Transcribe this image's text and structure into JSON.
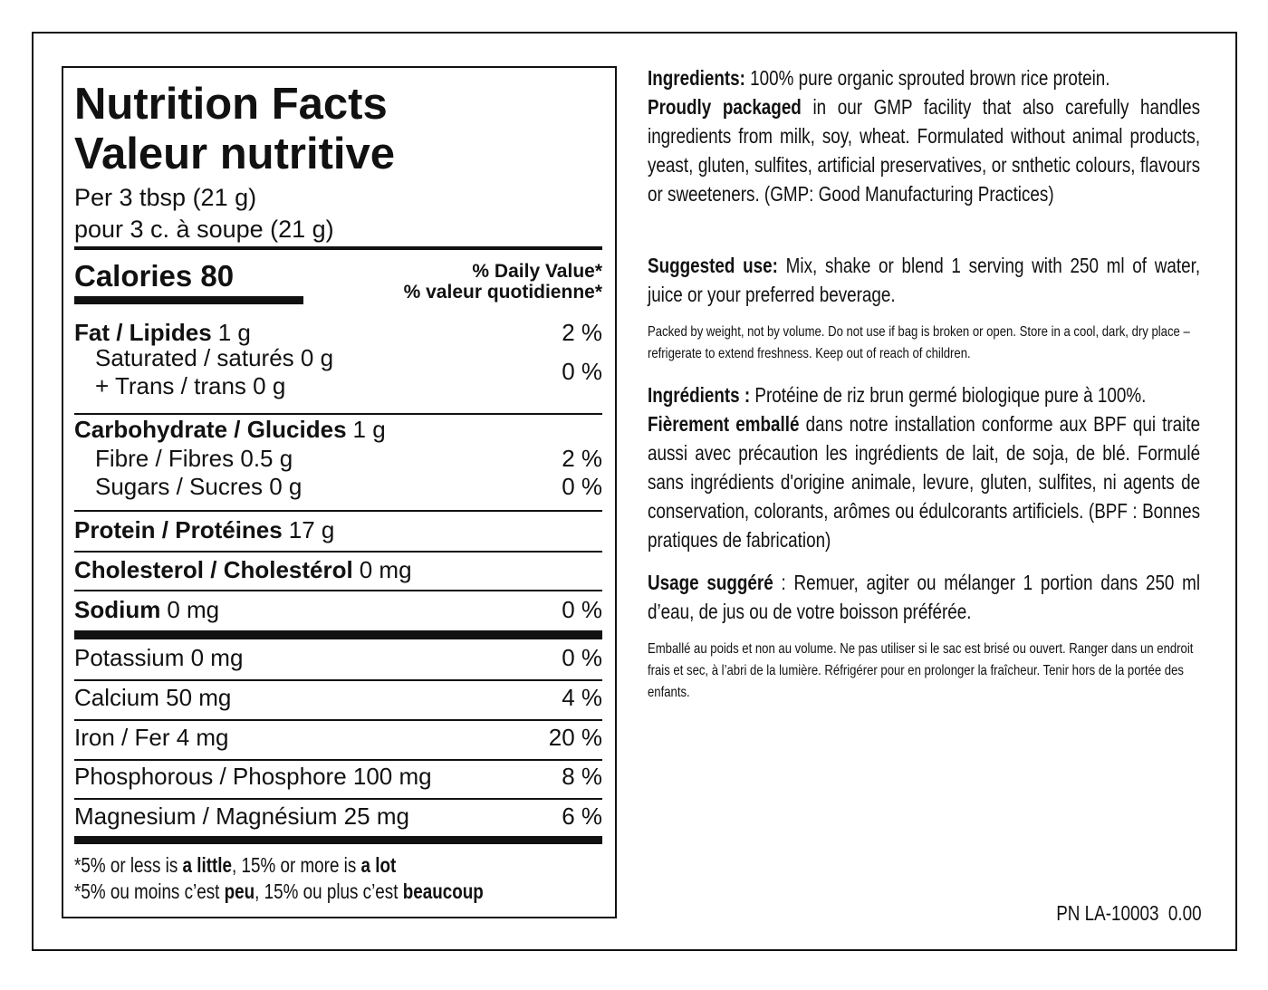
{
  "nutrition": {
    "title_en": "Nutrition Facts",
    "title_fr": "Valeur nutritive",
    "serving_en": "Per 3 tbsp (21 g)",
    "serving_fr": "pour 3 c. à soupe (21 g)",
    "calories": "Calories 80",
    "dv_en": "% Daily Value*",
    "dv_fr": "% valeur quotidienne*",
    "fat": {
      "name": "Fat / Lipides",
      "amount": "1 g",
      "dv": "2 %"
    },
    "saturated": "Saturated / saturés 0 g",
    "trans": "+ Trans / trans 0 g",
    "sat_trans_dv": "0 %",
    "carbohydrate": {
      "name": "Carbohydrate / Glucides",
      "amount": "1 g"
    },
    "fibre": {
      "text": "Fibre / Fibres 0.5 g",
      "dv": "2 %"
    },
    "sugars": {
      "text": "Sugars / Sucres 0 g",
      "dv": "0 %"
    },
    "protein": {
      "name": "Protein / Protéines",
      "amount": "17 g"
    },
    "cholesterol": {
      "name": "Cholesterol / Cholestérol",
      "amount": "0 mg"
    },
    "sodium": {
      "name": "Sodium",
      "amount": "0 mg",
      "dv": "0 %"
    },
    "minerals": [
      {
        "text": "Potassium 0 mg",
        "dv": "0 %"
      },
      {
        "text": "Calcium 50 mg",
        "dv": "4 %"
      },
      {
        "text": "Iron / Fer 4 mg",
        "dv": "20 %"
      },
      {
        "text": "Phosphorous / Phosphore 100 mg",
        "dv": "8 %"
      },
      {
        "text": "Magnesium / Magnésium 25 mg",
        "dv": "6 %"
      }
    ],
    "footnote_en": [
      "*5% or less is",
      "a little",
      ", 15% or more is",
      "a lot"
    ],
    "footnote_fr": [
      "*5% ou moins c’est",
      "peu",
      ", 15% ou plus c’est",
      "beaucoup"
    ]
  },
  "info": {
    "ingredients_en": {
      "label": "Ingredients:",
      "text": "100% pure organic sprouted brown rice protein."
    },
    "packaged_en": {
      "label": "Proudly packaged",
      "text": "in our GMP facility that also carefully handles ingredients from milk, soy, wheat. Formulated without animal products, yeast, gluten, sulfites, artificial preservatives, or snthetic colours, flavours or sweeteners. (GMP: Good Manufacturing Practices)"
    },
    "use_en": {
      "label": "Suggested use:",
      "text": "Mix, shake or blend 1 serving with 250 ml of water, juice or your preferred beverage."
    },
    "storage_en": "Packed by weight, not by volume. Do not use if bag is broken or open. Store in a cool, dark, dry place – refrigerate to extend freshness. Keep out of reach of children.",
    "ingredients_fr": {
      "label": "Ingrédients :",
      "text": "Protéine de riz brun germé biologique pure à 100%."
    },
    "packaged_fr": {
      "label": "Fièrement emballé",
      "text": "dans notre installation conforme aux BPF qui traite aussi avec précaution les ingrédients de lait, de soja, de blé. Formulé sans ingrédients d'origine animale, levure, gluten, sulfites, ni agents de conservation, colorants, arômes ou édulcorants artificiels. (BPF : Bonnes pratiques de fabrication)"
    },
    "use_fr": {
      "label": "Usage suggéré",
      "text": ": Remuer, agiter ou mélanger 1 portion dans 250 ml d’eau, de jus ou de votre boisson préférée."
    },
    "storage_fr": "Emballé au poids et non au volume. Ne pas utiliser si le sac est brisé ou ouvert. Ranger dans un endroit frais et sec, à l’abri de la lumière. Réfrigérer pour en prolonger la fraîcheur. Tenir hors de la portée des enfants.",
    "part_number": "PN LA-10003  0.00"
  }
}
